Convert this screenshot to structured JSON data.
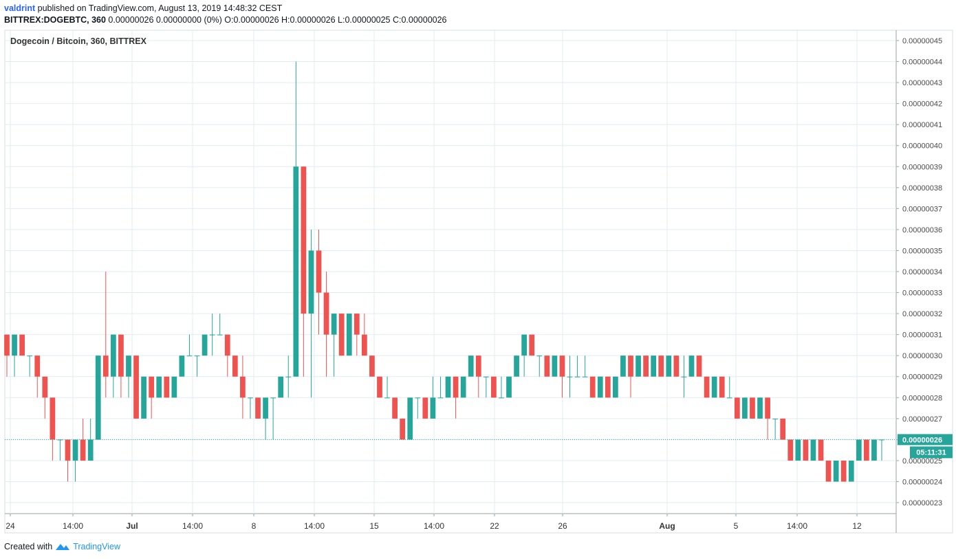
{
  "header": {
    "user": "valdrint",
    "published_text": "published on TradingView.com, August 13, 2019 14:48:32 CEST",
    "symbol": "BITTREX:DOGEBTC, 360",
    "ohlc_text": "0.00000026 0.00000000 (0%) O:0.00000026 H:0.00000026 L:0.00000025 C:0.00000026"
  },
  "legend": "Dogecoin / Bitcoin, 360, BITTREX",
  "footer": {
    "created_with": "Created with",
    "brand": "TradingView"
  },
  "colors": {
    "up": "#26a69a",
    "down": "#ef5350",
    "grid": "#e1ecf2",
    "price_line": "#26a69a"
  },
  "chart_data": {
    "type": "candlestick",
    "y_ticks": [
      "0.00000045",
      "0.00000044",
      "0.00000043",
      "0.00000042",
      "0.00000041",
      "0.00000040",
      "0.00000039",
      "0.00000038",
      "0.00000037",
      "0.00000036",
      "0.00000035",
      "0.00000034",
      "0.00000033",
      "0.00000032",
      "0.00000031",
      "0.00000030",
      "0.00000029",
      "0.00000028",
      "0.00000027",
      "0.00000026",
      "0.00000025",
      "0.00000024",
      "0.00000023"
    ],
    "ylim": [
      22.7,
      45.3
    ],
    "y_unit_note": "",
    "x_ticks": [
      "24",
      "14:00",
      "Jul",
      "14:00",
      "8",
      "14:00",
      "15",
      "14:00",
      "22",
      "26",
      "Aug",
      "5",
      "14:00",
      "12"
    ],
    "last_price_label": "0.00000026",
    "countdown_label": "05:11:31",
    "last_price": 26,
    "candles": [
      [
        31,
        31,
        29,
        30
      ],
      [
        30,
        31,
        29,
        31
      ],
      [
        31,
        31,
        30,
        30
      ],
      [
        30,
        30,
        29,
        30
      ],
      [
        30,
        30,
        28,
        29
      ],
      [
        29,
        29,
        27,
        28
      ],
      [
        28,
        28,
        25,
        26
      ],
      [
        26,
        26,
        25,
        26
      ],
      [
        26,
        26,
        24,
        25
      ],
      [
        25,
        26,
        24,
        26
      ],
      [
        26,
        27,
        25,
        25
      ],
      [
        25,
        27,
        25,
        26
      ],
      [
        26,
        30,
        26,
        30
      ],
      [
        30,
        34,
        28,
        29
      ],
      [
        29,
        31,
        28,
        31
      ],
      [
        31,
        31,
        28,
        29
      ],
      [
        29,
        30,
        28,
        30
      ],
      [
        30,
        30,
        27,
        27
      ],
      [
        27,
        29,
        27,
        29
      ],
      [
        29,
        29,
        27,
        28
      ],
      [
        28,
        29,
        28,
        29
      ],
      [
        29,
        29,
        28,
        28
      ],
      [
        28,
        29,
        28,
        29
      ],
      [
        29,
        30,
        29,
        30
      ],
      [
        30,
        31,
        30,
        30
      ],
      [
        30,
        30,
        29,
        30
      ],
      [
        30,
        31,
        30,
        31
      ],
      [
        31,
        32,
        30,
        31
      ],
      [
        31,
        32,
        31,
        31
      ],
      [
        31,
        31,
        29,
        30
      ],
      [
        30,
        30,
        29,
        29
      ],
      [
        29,
        30,
        27,
        28
      ],
      [
        28,
        28,
        27,
        28
      ],
      [
        28,
        28,
        27,
        27
      ],
      [
        27,
        28,
        26,
        28
      ],
      [
        28,
        28,
        26,
        28
      ],
      [
        28,
        29,
        28,
        29
      ],
      [
        29,
        30,
        28,
        29
      ],
      [
        29,
        44,
        29,
        39
      ],
      [
        39,
        39,
        29,
        32
      ],
      [
        32,
        36,
        28,
        35
      ],
      [
        35,
        36,
        31,
        33
      ],
      [
        33,
        34,
        29,
        31
      ],
      [
        31,
        32,
        29,
        32
      ],
      [
        32,
        32,
        30,
        30
      ],
      [
        30,
        32,
        30,
        32
      ],
      [
        32,
        32,
        30,
        31
      ],
      [
        31,
        32,
        30,
        30
      ],
      [
        30,
        30,
        29,
        29
      ],
      [
        29,
        29,
        28,
        28
      ],
      [
        28,
        29,
        28,
        28
      ],
      [
        28,
        28,
        27,
        27
      ],
      [
        27,
        27,
        26,
        26
      ],
      [
        26,
        28,
        26,
        28
      ],
      [
        28,
        28,
        27,
        28
      ],
      [
        28,
        28,
        27,
        27
      ],
      [
        27,
        29,
        27,
        28
      ],
      [
        28,
        29,
        28,
        28
      ],
      [
        28,
        29,
        28,
        29
      ],
      [
        29,
        29,
        27,
        28
      ],
      [
        28,
        29,
        28,
        29
      ],
      [
        29,
        30,
        29,
        30
      ],
      [
        30,
        30,
        28,
        29
      ],
      [
        29,
        29,
        28,
        29
      ],
      [
        29,
        29,
        28,
        28
      ],
      [
        28,
        29,
        28,
        28
      ],
      [
        28,
        29,
        28,
        29
      ],
      [
        29,
        30,
        29,
        30
      ],
      [
        30,
        31,
        29,
        31
      ],
      [
        31,
        31,
        30,
        30
      ],
      [
        30,
        30,
        29,
        30
      ],
      [
        30,
        30,
        29,
        29
      ],
      [
        29,
        30,
        29,
        30
      ],
      [
        30,
        30,
        28,
        29
      ],
      [
        29,
        30,
        28,
        29
      ],
      [
        29,
        30,
        29,
        29
      ],
      [
        29,
        30,
        29,
        29
      ],
      [
        29,
        29,
        28,
        28
      ],
      [
        28,
        29,
        28,
        29
      ],
      [
        29,
        29,
        28,
        28
      ],
      [
        28,
        29,
        28,
        29
      ],
      [
        29,
        30,
        29,
        30
      ],
      [
        30,
        30,
        28,
        29
      ],
      [
        29,
        30,
        29,
        30
      ],
      [
        30,
        30,
        29,
        29
      ],
      [
        29,
        30,
        29,
        30
      ],
      [
        30,
        30,
        29,
        29
      ],
      [
        29,
        30,
        29,
        30
      ],
      [
        30,
        30,
        29,
        29
      ],
      [
        29,
        30,
        28,
        29
      ],
      [
        29,
        30,
        29,
        30
      ],
      [
        30,
        30,
        29,
        29
      ],
      [
        29,
        29,
        28,
        28
      ],
      [
        28,
        29,
        28,
        29
      ],
      [
        29,
        29,
        28,
        28
      ],
      [
        28,
        29,
        28,
        28
      ],
      [
        28,
        28,
        27,
        27
      ],
      [
        27,
        28,
        27,
        28
      ],
      [
        28,
        28,
        27,
        27
      ],
      [
        27,
        28,
        27,
        28
      ],
      [
        28,
        28,
        26,
        27
      ],
      [
        27,
        27,
        26,
        27
      ],
      [
        27,
        27,
        26,
        26
      ],
      [
        26,
        26,
        25,
        25
      ],
      [
        25,
        26,
        25,
        26
      ],
      [
        26,
        26,
        25,
        25
      ],
      [
        25,
        26,
        25,
        26
      ],
      [
        26,
        26,
        25,
        25
      ],
      [
        25,
        25,
        24,
        24
      ],
      [
        24,
        25,
        24,
        25
      ],
      [
        25,
        25,
        24,
        24
      ],
      [
        24,
        25,
        24,
        25
      ],
      [
        25,
        26,
        25,
        26
      ],
      [
        26,
        26,
        25,
        25
      ],
      [
        25,
        26,
        25,
        26
      ],
      [
        26,
        26,
        25,
        26
      ]
    ]
  }
}
